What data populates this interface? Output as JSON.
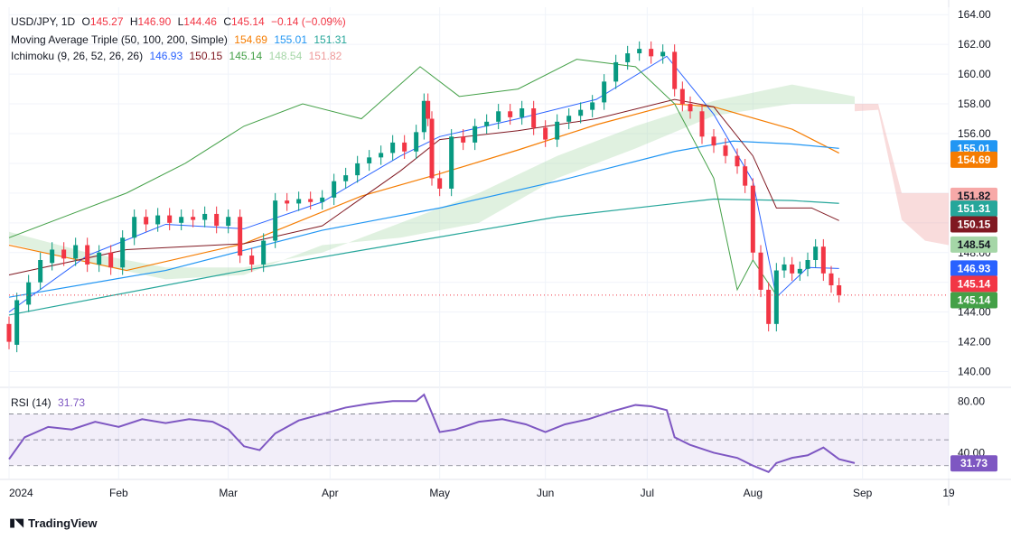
{
  "header": {
    "symbol": "USD/JPY, 1D",
    "o_label": "O",
    "o_value": "145.27",
    "h_label": "H",
    "h_value": "146.90",
    "l_label": "L",
    "l_value": "144.46",
    "c_label": "C",
    "c_value": "145.14",
    "change": "−0.14 (−0.09%)"
  },
  "ma_legend": {
    "name": "Moving Average Triple (50, 100, 200, Simple)",
    "values": [
      {
        "value": "154.69",
        "color": "#f57c00"
      },
      {
        "value": "155.01",
        "color": "#2196f3"
      },
      {
        "value": "151.31",
        "color": "#26a69a"
      }
    ]
  },
  "ichimoku_legend": {
    "name": "Ichimoku (9, 26, 52, 26, 26)",
    "values": [
      {
        "value": "146.93",
        "color": "#2962ff"
      },
      {
        "value": "150.15",
        "color": "#801922"
      },
      {
        "value": "145.14",
        "color": "#43a047"
      },
      {
        "value": "148.54",
        "color": "#a5d6a7"
      },
      {
        "value": "151.82",
        "color": "#ef9a9a"
      }
    ]
  },
  "rsi_legend": {
    "name": "RSI (14)",
    "value": "31.73",
    "color": "#7e57c2"
  },
  "footer": {
    "brand": "TradingView"
  },
  "colors": {
    "up": "#089981",
    "down": "#f23645",
    "grid": "#f0f3fa",
    "axis_text": "#131722"
  },
  "chart_data": {
    "type": "candlestick",
    "title": "USD/JPY, 1D",
    "price_axis": {
      "ylim": [
        139,
        164.5
      ],
      "ticks": [
        "164.00",
        "162.00",
        "160.00",
        "158.00",
        "156.00",
        "154.00",
        "152.00",
        "150.00",
        "148.00",
        "146.00",
        "144.00",
        "142.00",
        "140.00"
      ],
      "tick_values": [
        164,
        162,
        160,
        158,
        156,
        154,
        152,
        150,
        148,
        146,
        144,
        142,
        140
      ]
    },
    "time_axis": {
      "labels": [
        "2024",
        "Feb",
        "Mar",
        "Apr",
        "May",
        "Jun",
        "Jul",
        "Aug",
        "Sep",
        "19"
      ],
      "label_index": [
        0,
        28,
        56,
        82,
        110,
        137,
        163,
        190,
        218,
        240
      ],
      "total_days": 240
    },
    "candles": [
      [
        0,
        143.2,
        142.0
      ],
      [
        2,
        141.8,
        144.8
      ],
      [
        5,
        144.5,
        146.0
      ],
      [
        8,
        146.0,
        147.5
      ],
      [
        11,
        147.3,
        148.2
      ],
      [
        14,
        148.2,
        147.6
      ],
      [
        17,
        147.6,
        148.5
      ],
      [
        20,
        148.5,
        147.2
      ],
      [
        23,
        147.2,
        148.0
      ],
      [
        26,
        148.0,
        147.0
      ],
      [
        29,
        147.0,
        149.0
      ],
      [
        32,
        149.0,
        150.4
      ],
      [
        35,
        150.4,
        149.9
      ],
      [
        38,
        149.9,
        150.5
      ],
      [
        41,
        150.5,
        150.0
      ],
      [
        44,
        150.0,
        150.4
      ],
      [
        47,
        150.4,
        150.2
      ],
      [
        50,
        150.2,
        150.6
      ],
      [
        53,
        150.6,
        149.8
      ],
      [
        56,
        149.8,
        150.4
      ],
      [
        59,
        150.4,
        147.8
      ],
      [
        62,
        147.8,
        147.2
      ],
      [
        65,
        147.2,
        148.8
      ],
      [
        68,
        148.8,
        151.5
      ],
      [
        71,
        151.5,
        151.3
      ],
      [
        74,
        151.3,
        151.6
      ],
      [
        77,
        151.6,
        151.4
      ],
      [
        80,
        151.4,
        151.7
      ],
      [
        83,
        151.7,
        152.8
      ],
      [
        86,
        152.8,
        153.2
      ],
      [
        89,
        153.2,
        154.0
      ],
      [
        92,
        154.0,
        154.4
      ],
      [
        95,
        154.4,
        154.7
      ],
      [
        98,
        154.7,
        155.4
      ],
      [
        101,
        155.4,
        154.8
      ],
      [
        104,
        154.8,
        156.1
      ],
      [
        106,
        156.1,
        158.2
      ],
      [
        107,
        158.2,
        157.0
      ],
      [
        108,
        157.0,
        153.0
      ],
      [
        110,
        153.0,
        152.3
      ],
      [
        113,
        152.3,
        155.8
      ],
      [
        116,
        155.8,
        155.4
      ],
      [
        119,
        155.4,
        156.5
      ],
      [
        122,
        156.5,
        156.8
      ],
      [
        125,
        156.8,
        157.5
      ],
      [
        128,
        157.5,
        157.1
      ],
      [
        131,
        157.1,
        157.7
      ],
      [
        134,
        157.7,
        156.4
      ],
      [
        137,
        156.4,
        155.6
      ],
      [
        140,
        155.6,
        156.8
      ],
      [
        143,
        156.8,
        157.2
      ],
      [
        146,
        157.2,
        157.6
      ],
      [
        149,
        157.6,
        158.1
      ],
      [
        152,
        158.1,
        159.5
      ],
      [
        155,
        159.5,
        160.8
      ],
      [
        158,
        160.8,
        161.4
      ],
      [
        161,
        161.4,
        161.7
      ],
      [
        164,
        161.7,
        161.2
      ],
      [
        167,
        161.2,
        161.5
      ],
      [
        170,
        161.5,
        159.0
      ],
      [
        172,
        159.0,
        158.0
      ],
      [
        174,
        158.0,
        157.5
      ],
      [
        177,
        157.5,
        155.8
      ],
      [
        180,
        155.8,
        155.2
      ],
      [
        183,
        155.2,
        154.5
      ],
      [
        186,
        154.5,
        153.8
      ],
      [
        188,
        153.8,
        152.5
      ],
      [
        190,
        152.5,
        148.0
      ],
      [
        192,
        148.0,
        145.5
      ],
      [
        194,
        145.5,
        143.2
      ],
      [
        196,
        143.2,
        146.8
      ],
      [
        198,
        146.8,
        147.2
      ],
      [
        200,
        147.2,
        146.6
      ],
      [
        202,
        146.6,
        146.9
      ],
      [
        204,
        146.9,
        147.5
      ],
      [
        206,
        147.5,
        148.4
      ],
      [
        208,
        148.4,
        146.6
      ],
      [
        210,
        146.6,
        145.8
      ],
      [
        212,
        145.8,
        145.14
      ]
    ],
    "series": [
      {
        "name": "MA 50",
        "color": "#f57c00",
        "last": 154.69
      },
      {
        "name": "MA 100",
        "color": "#2196f3",
        "last": 155.01
      },
      {
        "name": "MA 200",
        "color": "#26a69a",
        "last": 151.31
      },
      {
        "name": "Conversion Line",
        "color": "#2962ff",
        "last": 146.93
      },
      {
        "name": "Base Line",
        "color": "#801922",
        "last": 150.15
      },
      {
        "name": "Lagging Span",
        "color": "#43a047",
        "last": 145.14
      },
      {
        "name": "Leading Span A",
        "color": "#a5d6a7",
        "last": 148.54
      },
      {
        "name": "Leading Span B",
        "color": "#ef9a9a",
        "last": 151.82
      }
    ],
    "price_labels": [
      {
        "value": "155.01",
        "price": 155.01,
        "bg": "#2196f3",
        "fg": "#ffffff"
      },
      {
        "value": "154.69",
        "price": 154.25,
        "bg": "#f57c00",
        "fg": "#ffffff"
      },
      {
        "value": "151.82",
        "price": 151.82,
        "bg": "#f7a9a8",
        "fg": "#131722"
      },
      {
        "value": "151.31",
        "price": 150.95,
        "bg": "#26a69a",
        "fg": "#ffffff"
      },
      {
        "value": "150.15",
        "price": 149.9,
        "bg": "#801922",
        "fg": "#ffffff"
      },
      {
        "value": "148.54",
        "price": 148.54,
        "bg": "#a5d6a7",
        "fg": "#131722"
      },
      {
        "value": "146.93",
        "price": 146.93,
        "bg": "#2962ff",
        "fg": "#ffffff"
      },
      {
        "value": "145.14",
        "price": 145.9,
        "bg": "#f23645",
        "fg": "#ffffff"
      },
      {
        "value": "145.14",
        "price": 144.8,
        "bg": "#43a047",
        "fg": "#ffffff"
      }
    ],
    "rsi": {
      "ylim": [
        20,
        90
      ],
      "ticks": [
        "80.00",
        "40.00"
      ],
      "band": [
        30,
        70
      ],
      "last": 31.73,
      "points": [
        [
          0,
          35
        ],
        [
          4,
          52
        ],
        [
          10,
          60
        ],
        [
          16,
          58
        ],
        [
          22,
          64
        ],
        [
          28,
          60
        ],
        [
          34,
          66
        ],
        [
          40,
          63
        ],
        [
          46,
          66
        ],
        [
          52,
          64
        ],
        [
          56,
          58
        ],
        [
          60,
          45
        ],
        [
          64,
          42
        ],
        [
          68,
          55
        ],
        [
          74,
          65
        ],
        [
          80,
          70
        ],
        [
          86,
          75
        ],
        [
          92,
          78
        ],
        [
          98,
          80
        ],
        [
          104,
          80
        ],
        [
          106,
          85
        ],
        [
          107,
          78
        ],
        [
          110,
          56
        ],
        [
          114,
          58
        ],
        [
          120,
          64
        ],
        [
          126,
          66
        ],
        [
          132,
          62
        ],
        [
          137,
          56
        ],
        [
          142,
          62
        ],
        [
          148,
          66
        ],
        [
          154,
          72
        ],
        [
          160,
          77
        ],
        [
          164,
          76
        ],
        [
          168,
          73
        ],
        [
          170,
          52
        ],
        [
          174,
          46
        ],
        [
          180,
          40
        ],
        [
          186,
          36
        ],
        [
          190,
          30
        ],
        [
          194,
          25
        ],
        [
          196,
          32
        ],
        [
          200,
          36
        ],
        [
          204,
          38
        ],
        [
          208,
          44
        ],
        [
          212,
          35
        ],
        [
          216,
          32
        ]
      ]
    }
  }
}
